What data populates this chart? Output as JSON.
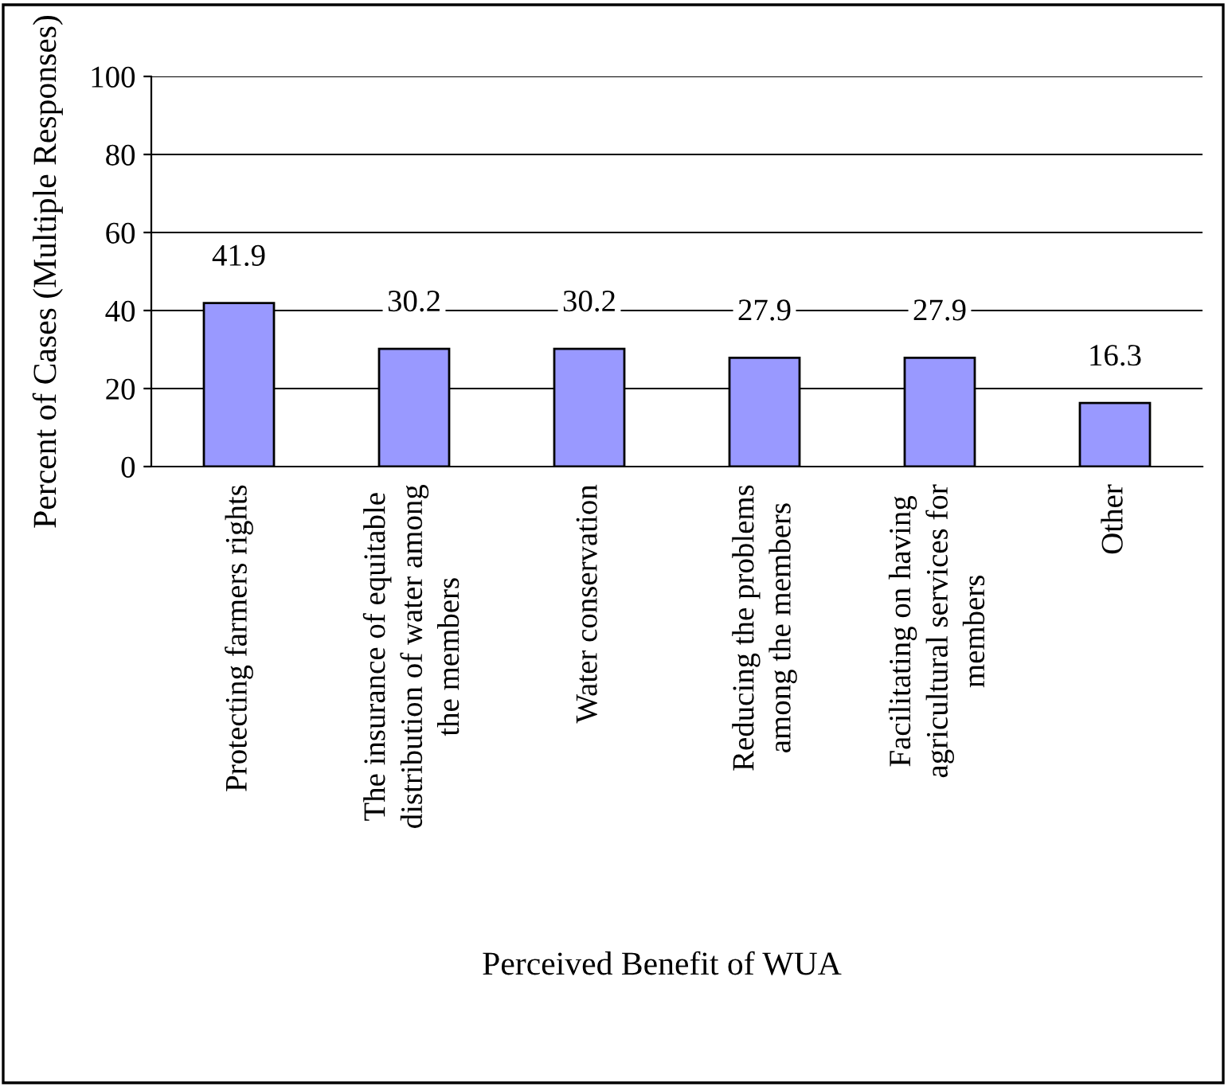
{
  "chart_data": {
    "type": "bar",
    "xlabel": "Perceived Benefit of WUA",
    "ylabel": "Percent of Cases (Multiple Responses)",
    "categories": [
      "Protecting farmers rights",
      "The insurance of equitable\ndistribution of water among\nthe members",
      "Water conservation",
      "Reducing the problems\namong the members",
      "Facilitating on having\nagricultural services for\nmembers",
      "Other"
    ],
    "values": [
      41.9,
      30.2,
      30.2,
      27.9,
      27.9,
      16.3
    ],
    "color": "#9999ff",
    "ylim": [
      0,
      100
    ],
    "yticks": [
      0,
      20,
      40,
      60,
      80,
      100
    ],
    "grid": "y",
    "data_labels": true
  }
}
